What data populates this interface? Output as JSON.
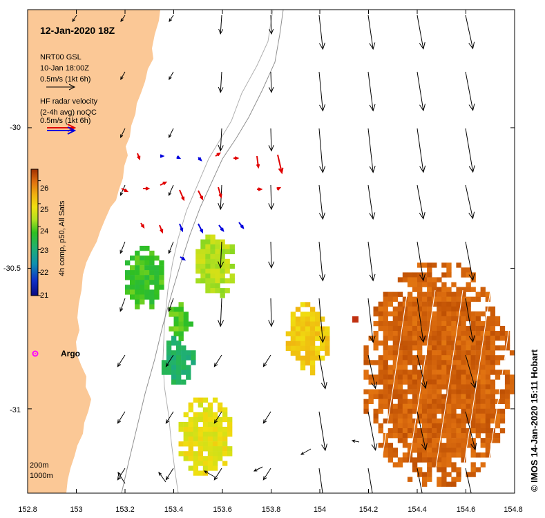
{
  "title": "12-Jan-2020 18Z",
  "legend": {
    "model_line1": "NRT00 GSL",
    "model_line2": "10-Jan 18:00Z",
    "model_scale": "0.5m/s (1kt 6h)",
    "radar_line1": "HF radar velocity",
    "radar_line2": "(2-4h avg) noQC",
    "radar_scale": "0.5m/s (1kt 6h)"
  },
  "colorbar": {
    "label": "4h comp, p50, All Sats",
    "min": 21,
    "max": 26.5,
    "ticks": [
      "21",
      "22",
      "23",
      "24",
      "25",
      "26"
    ]
  },
  "axes": {
    "x_ticks": [
      "152.8",
      "153",
      "153.2",
      "153.4",
      "153.6",
      "153.8",
      "154",
      "154.2",
      "154.4",
      "154.6",
      "154.8"
    ],
    "y_ticks": [
      "-30",
      "-30.5",
      "-31"
    ],
    "lon_range": [
      152.8,
      154.8
    ],
    "lat_range": [
      -31.3,
      -29.58
    ]
  },
  "isobaths": [
    "200m",
    "1000m"
  ],
  "argo": {
    "label": "Argo",
    "lon": 152.83,
    "lat": -30.8
  },
  "credit": "© IMOS 14-Jan-2020 15:11 Hobart",
  "colors": {
    "land": "#fbc896",
    "model_arrow": "#000000",
    "radar_toward": "#e00000",
    "radar_away": "#0000dd",
    "argo": "#ff00ff"
  },
  "sst_patches": [
    {
      "name": "coastal-west",
      "lon": [
        153.2,
        153.36
      ],
      "lat": [
        -30.65,
        -30.42
      ],
      "temp": 23.8
    },
    {
      "name": "coastal-mid",
      "lon": [
        153.49,
        153.66
      ],
      "lat": [
        -30.6,
        -30.38
      ],
      "temp": 24.4
    },
    {
      "name": "teal-core",
      "lon": [
        153.35,
        153.49
      ],
      "lat": [
        -30.91,
        -30.74
      ],
      "temp": 23.2
    },
    {
      "name": "green-strip",
      "lon": [
        153.38,
        153.47
      ],
      "lat": [
        -30.75,
        -30.62
      ],
      "temp": 23.9
    },
    {
      "name": "offshore-mid",
      "lon": [
        153.86,
        154.04
      ],
      "lat": [
        -30.88,
        -30.62
      ],
      "temp": 25.1
    },
    {
      "name": "south-inshore",
      "lon": [
        153.42,
        153.64
      ],
      "lat": [
        -31.24,
        -30.96
      ],
      "temp": 24.8
    },
    {
      "name": "east-warm",
      "lon": [
        154.18,
        154.79
      ],
      "lat": [
        -31.27,
        -30.48
      ],
      "temp": 26.1
    }
  ]
}
